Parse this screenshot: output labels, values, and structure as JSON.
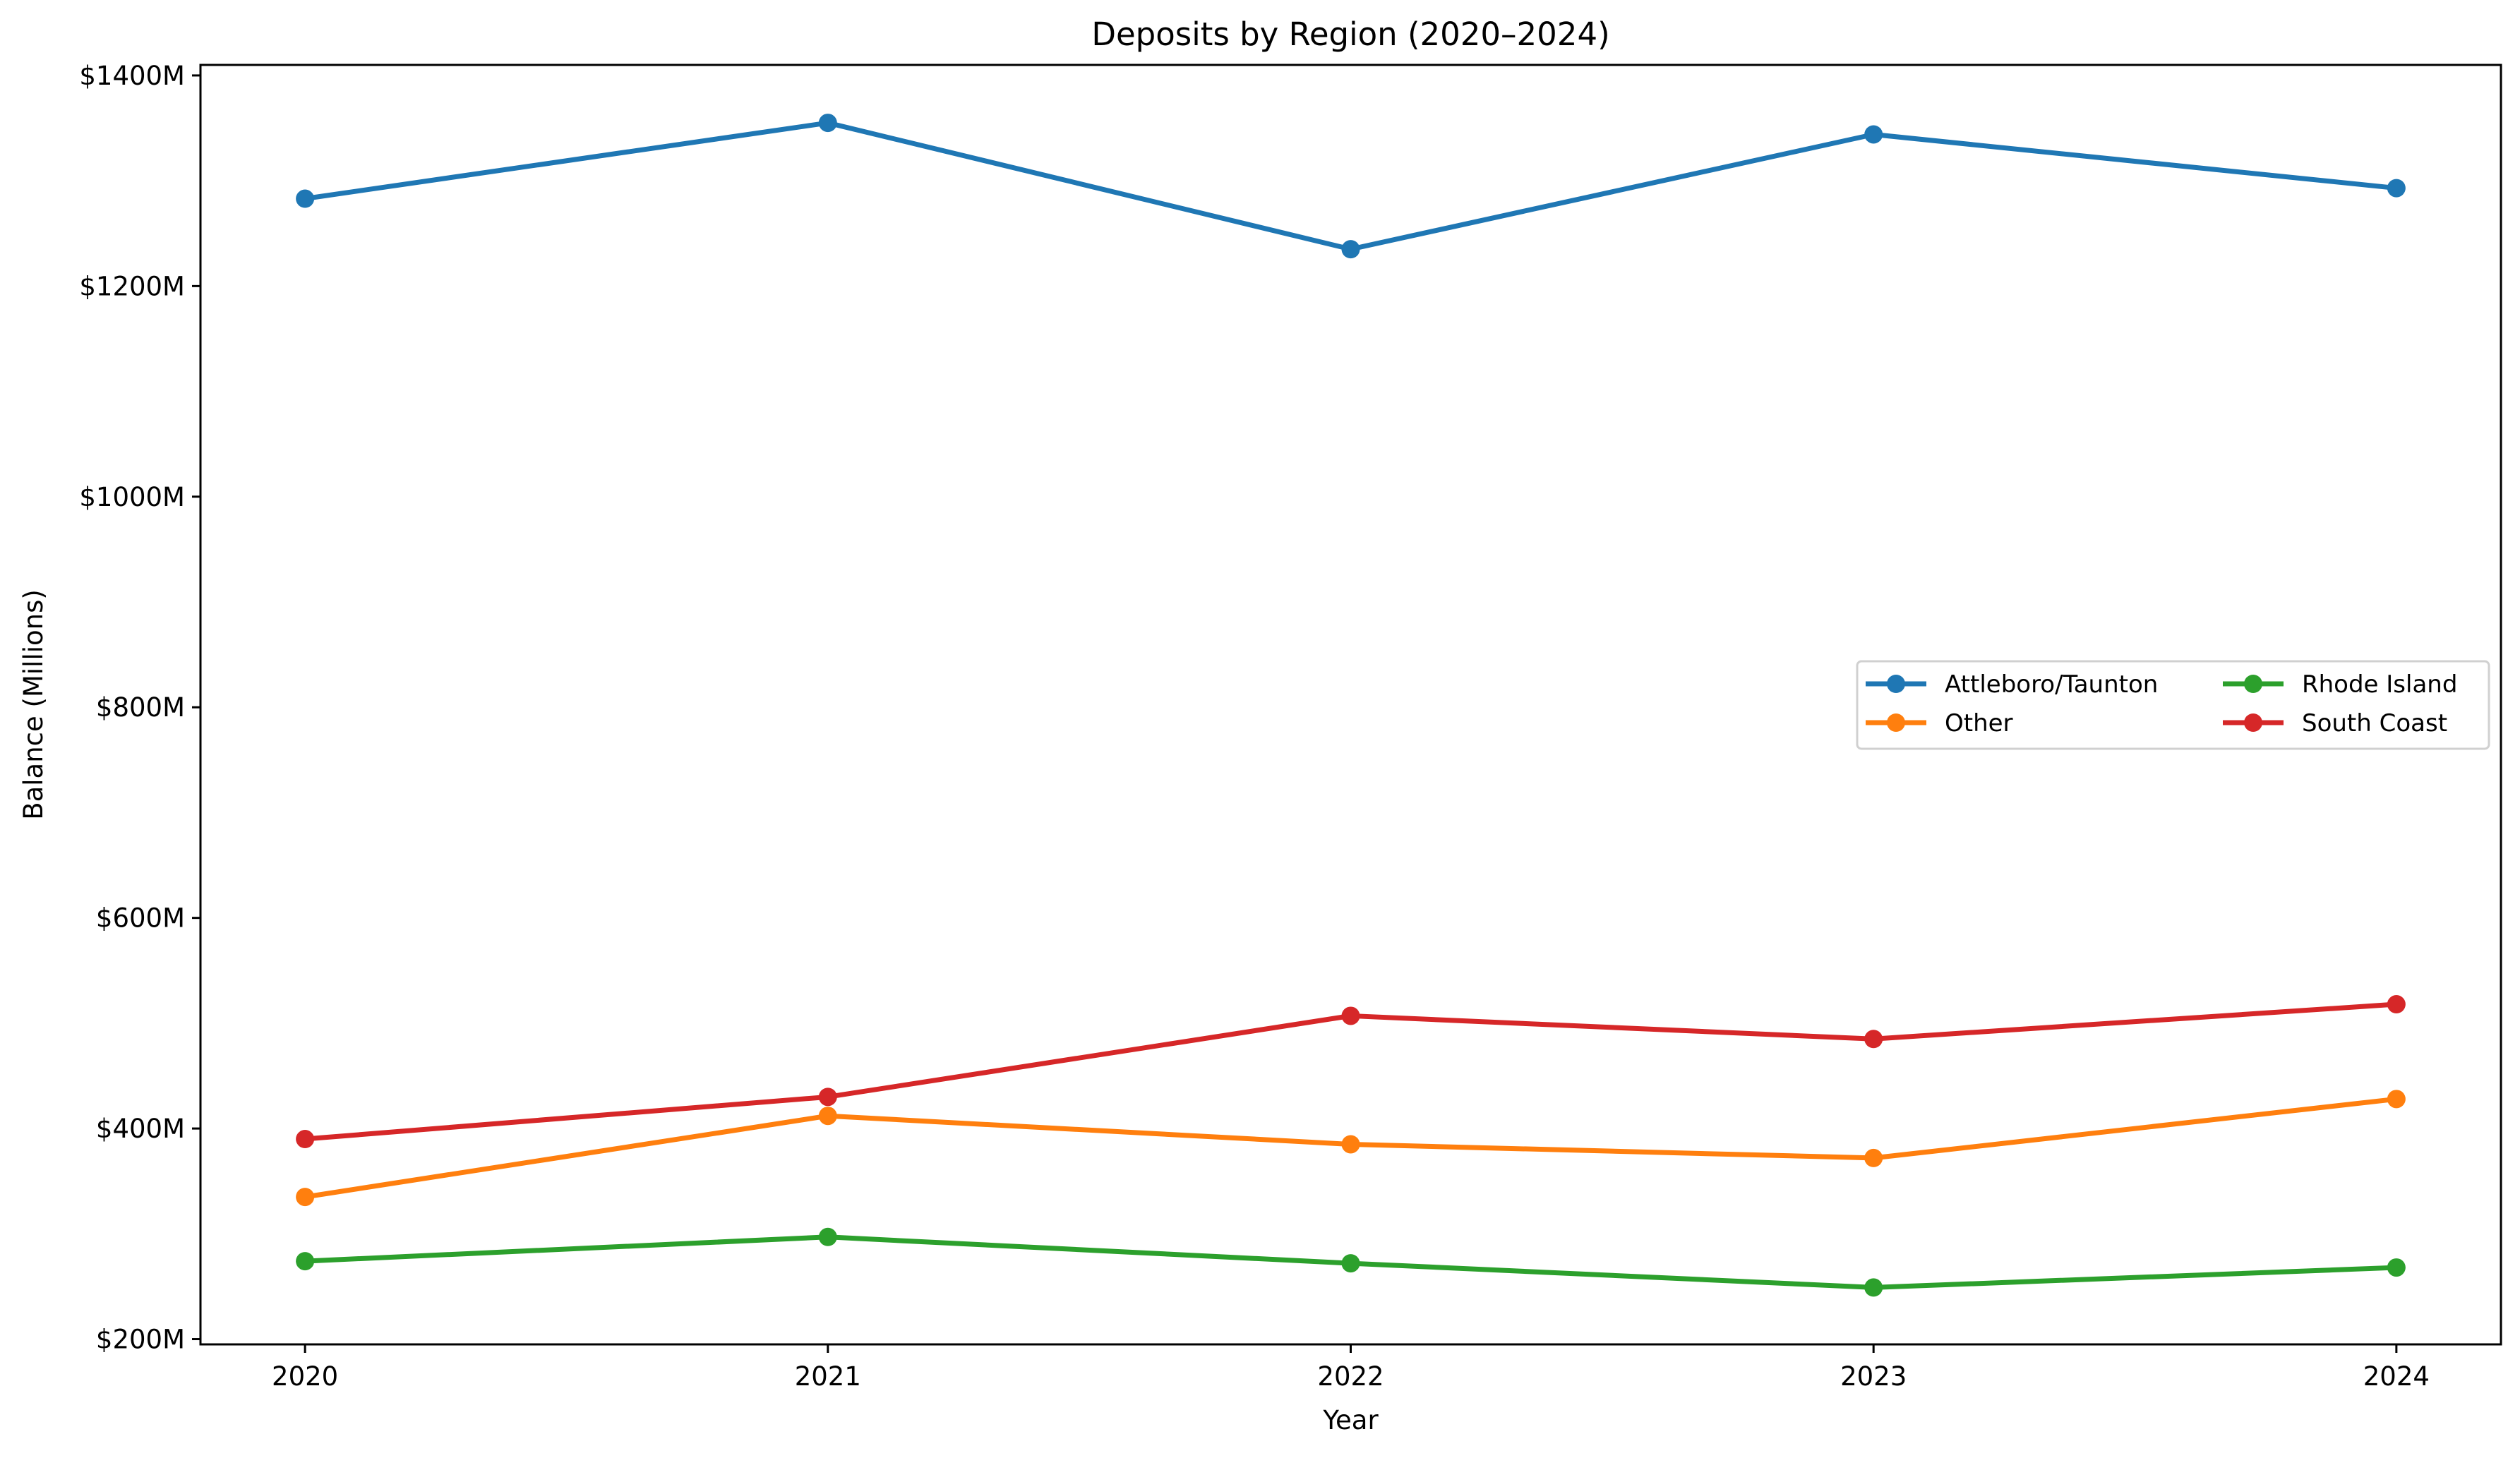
{
  "chart_data": {
    "type": "line",
    "title": "Deposits by Region (2020–2024)",
    "xlabel": "Year",
    "ylabel": "Balance (Millions)",
    "categories": [
      "2020",
      "2021",
      "2022",
      "2023",
      "2024"
    ],
    "ylim": [
      195,
      1410
    ],
    "y_ticks": [
      200,
      400,
      600,
      800,
      1000,
      1200,
      1400
    ],
    "y_tick_labels": [
      "$200M",
      "$400M",
      "$600M",
      "$800M",
      "$1000M",
      "$1200M",
      "$1400M"
    ],
    "grid": false,
    "legend": {
      "placement": "center-right",
      "columns": 2
    },
    "series": [
      {
        "name": "Attleboro/Taunton",
        "color": "#1f77b4",
        "values": [
          1283,
          1355,
          1235,
          1344,
          1293
        ]
      },
      {
        "name": "Other",
        "color": "#ff7f0e",
        "values": [
          335,
          412,
          385,
          372,
          428
        ]
      },
      {
        "name": "Rhode Island",
        "color": "#2ca02c",
        "values": [
          274,
          297,
          272,
          249,
          268
        ]
      },
      {
        "name": "South Coast",
        "color": "#d62728",
        "values": [
          390,
          430,
          507,
          485,
          518
        ]
      }
    ]
  }
}
